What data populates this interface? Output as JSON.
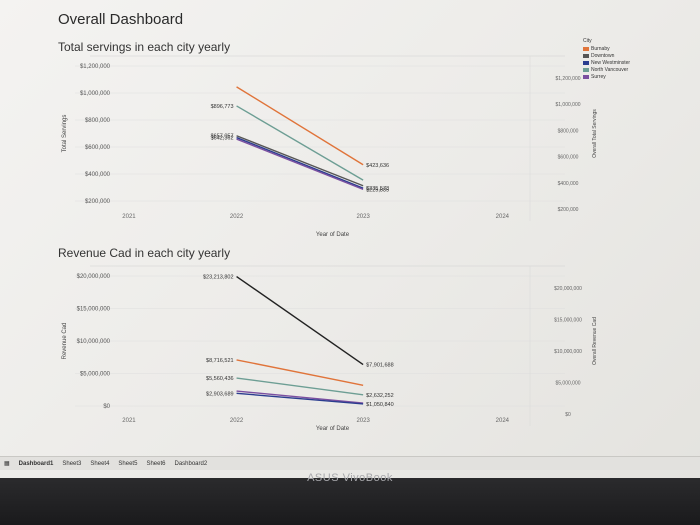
{
  "dashboard": {
    "title": "Overall Dashboard"
  },
  "tabs": [
    "Dashboard1",
    "Sheet3",
    "Sheet4",
    "Sheet5",
    "Sheet6",
    "Dashboard2"
  ],
  "device": {
    "brand": "ASUS VivoBook"
  },
  "legend": {
    "title": "City",
    "items": [
      {
        "name": "Burnaby",
        "color": "#e0743a"
      },
      {
        "name": "Downtown",
        "color": "#555555"
      },
      {
        "name": "New Westminster",
        "color": "#2b3d8f"
      },
      {
        "name": "North Vancouver",
        "color": "#6d9e94"
      },
      {
        "name": "Surrey",
        "color": "#7b4fa0"
      }
    ]
  },
  "chart_data": [
    {
      "type": "line",
      "title": "Total servings in each city yearly",
      "xlabel": "Year of Date",
      "ylabel": "Total Servings",
      "y2label": "Overall Total Servings",
      "x_ticks": [
        "2021",
        "2022",
        "2023",
        "2024"
      ],
      "y_ticks": [
        "$1,200,000",
        "$1,000,000",
        "$800,000",
        "$600,000",
        "$400,000",
        "$200,000"
      ],
      "y2_ticks": [
        "$1,200,000",
        "$1,000,000",
        "$800,000",
        "$600,000",
        "$400,000",
        "$200,000"
      ],
      "ylim": [
        100000,
        1250000
      ],
      "x": [
        2022,
        2023
      ],
      "series": [
        {
          "name": "Burnaby",
          "color": "#e0743a",
          "values": [
            1050000,
            423636
          ]
        },
        {
          "name": "North Vancouver",
          "color": "#6d9e94",
          "values": [
            896773,
            300000
          ]
        },
        {
          "name": "Downtown",
          "color": "#555555",
          "values": [
            657057,
            255000
          ]
        },
        {
          "name": "New Westminster",
          "color": "#2b3d8f",
          "values": [
            642362,
            235573
          ]
        },
        {
          "name": "Surrey",
          "color": "#7b4fa0",
          "values": [
            630000,
            225885
          ]
        }
      ],
      "labels": [
        {
          "text": "$896,773",
          "x": 2022,
          "y": 896773
        },
        {
          "text": "$657,057",
          "x": 2022,
          "y": 657057
        },
        {
          "text": "$642,362",
          "x": 2022,
          "y": 642362
        },
        {
          "text": "$423,636",
          "x": 2023,
          "y": 423636
        },
        {
          "text": "$235,573",
          "x": 2023,
          "y": 235573
        },
        {
          "text": "$225,885",
          "x": 2023,
          "y": 225885
        }
      ]
    },
    {
      "type": "line",
      "title": "Revenue Cad in each city yearly",
      "xlabel": "Year of Date",
      "ylabel": "Revenue Cad",
      "y2label": "Overall Revenue Cad",
      "x_ticks": [
        "2021",
        "2022",
        "2023",
        "2024"
      ],
      "y_ticks": [
        "$20,000,000",
        "$15,000,000",
        "$10,000,000",
        "$5,000,000",
        "$0"
      ],
      "y2_ticks": [
        "$20,000,000",
        "$15,000,000",
        "$10,000,000",
        "$5,000,000",
        "$0"
      ],
      "ylim": [
        0,
        24000000
      ],
      "x": [
        2022,
        2023
      ],
      "series": [
        {
          "name": "Downtown",
          "color": "#222222",
          "values": [
            23213802,
            7901688
          ]
        },
        {
          "name": "Burnaby",
          "color": "#e0743a",
          "values": [
            8716521,
            4300000
          ]
        },
        {
          "name": "North Vancouver",
          "color": "#6d9e94",
          "values": [
            5560436,
            2632252
          ]
        },
        {
          "name": "Surrey",
          "color": "#7b4fa0",
          "values": [
            3300000,
            1200000
          ]
        },
        {
          "name": "New Westminster",
          "color": "#2b3d8f",
          "values": [
            2903689,
            1050840
          ]
        }
      ],
      "labels": [
        {
          "text": "$23,213,802",
          "x": 2022,
          "y": 23213802
        },
        {
          "text": "$8,716,521",
          "x": 2022,
          "y": 8716521
        },
        {
          "text": "$5,560,436",
          "x": 2022,
          "y": 5560436
        },
        {
          "text": "$2,903,689",
          "x": 2022,
          "y": 2903689
        },
        {
          "text": "$7,901,688",
          "x": 2023,
          "y": 7901688
        },
        {
          "text": "$2,632,252",
          "x": 2023,
          "y": 2632252
        },
        {
          "text": "$1,050,840",
          "x": 2023,
          "y": 1050840
        }
      ]
    }
  ]
}
